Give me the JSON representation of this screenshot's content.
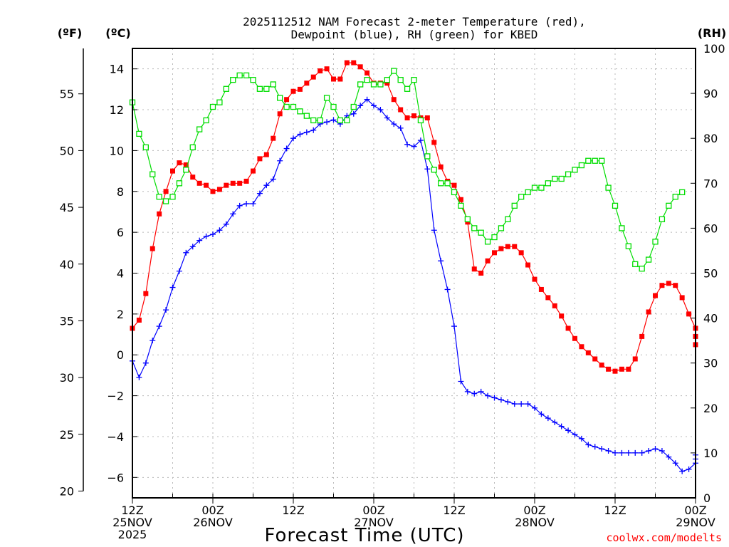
{
  "chart_data": {
    "type": "line",
    "title": [
      "2025112512 NAM Forecast 2-meter Temperature (red),",
      "Dewpoint (blue), RH (green) for KBED"
    ],
    "xlabel": "Forecast Time (UTC)",
    "credit": "coolwx.com/modelts",
    "axis_labels": {
      "fahrenheit": "(ºF)",
      "celsius": "(ºC)",
      "rh": "(RH)"
    },
    "x_hours_range": [
      0,
      84
    ],
    "celsius_range": [
      -7,
      15
    ],
    "rh_range": [
      0,
      100
    ],
    "fahrenheit_ticks": [
      20,
      25,
      30,
      35,
      40,
      45,
      50,
      55
    ],
    "celsius_ticks": [
      -6,
      -4,
      -2,
      0,
      2,
      4,
      6,
      8,
      10,
      12,
      14
    ],
    "celsius_tick_labels": [
      "−6",
      "−4",
      "−2",
      "0",
      "2",
      "4",
      "6",
      "8",
      "10",
      "12",
      "14"
    ],
    "rh_ticks": [
      0,
      10,
      20,
      30,
      40,
      50,
      60,
      70,
      80,
      90,
      100
    ],
    "x_ticks": [
      {
        "hour": 0,
        "lines": [
          "12Z",
          "25NOV",
          "2025"
        ]
      },
      {
        "hour": 12,
        "lines": [
          "00Z",
          "26NOV"
        ]
      },
      {
        "hour": 24,
        "lines": [
          "12Z"
        ]
      },
      {
        "hour": 36,
        "lines": [
          "00Z",
          "27NOV"
        ]
      },
      {
        "hour": 48,
        "lines": [
          "12Z"
        ]
      },
      {
        "hour": 60,
        "lines": [
          "00Z",
          "28NOV"
        ]
      },
      {
        "hour": 72,
        "lines": [
          "12Z"
        ]
      },
      {
        "hour": 84,
        "lines": [
          "00Z",
          "29NOV"
        ]
      }
    ],
    "series": [
      {
        "name": "Temperature",
        "color": "#ff0000",
        "marker": "filled-square",
        "units": "C",
        "points": [
          [
            0,
            1.3
          ],
          [
            1,
            1.7
          ],
          [
            2,
            3
          ],
          [
            3,
            5.2
          ],
          [
            4,
            6.9
          ],
          [
            5,
            8
          ],
          [
            6,
            9
          ],
          [
            7,
            9.4
          ],
          [
            8,
            9.3
          ],
          [
            9,
            8.7
          ],
          [
            10,
            8.4
          ],
          [
            11,
            8.3
          ],
          [
            12,
            8
          ],
          [
            13,
            8.1
          ],
          [
            14,
            8.3
          ],
          [
            15,
            8.4
          ],
          [
            16,
            8.4
          ],
          [
            17,
            8.5
          ],
          [
            18,
            9
          ],
          [
            19,
            9.6
          ],
          [
            20,
            9.8
          ],
          [
            21,
            10.6
          ],
          [
            22,
            11.8
          ],
          [
            23,
            12.5
          ],
          [
            24,
            12.9
          ],
          [
            25,
            13
          ],
          [
            26,
            13.3
          ],
          [
            27,
            13.6
          ],
          [
            28,
            13.9
          ],
          [
            29,
            14
          ],
          [
            30,
            13.5
          ],
          [
            31,
            13.5
          ],
          [
            32,
            14.3
          ],
          [
            33,
            14.3
          ],
          [
            34,
            14.1
          ],
          [
            35,
            13.8
          ],
          [
            36,
            13.3
          ],
          [
            37,
            13.3
          ],
          [
            38,
            13.3
          ],
          [
            39,
            12.5
          ],
          [
            40,
            12
          ],
          [
            41,
            11.6
          ],
          [
            42,
            11.7
          ],
          [
            43,
            11.6
          ],
          [
            44,
            11.6
          ],
          [
            45,
            10.4
          ],
          [
            46,
            9.2
          ],
          [
            47,
            8.5
          ],
          [
            48,
            8.3
          ],
          [
            49,
            7.6
          ],
          [
            50,
            6.5
          ],
          [
            51,
            4.2
          ],
          [
            52,
            4
          ],
          [
            53,
            4.6
          ],
          [
            54,
            5
          ],
          [
            55,
            5.2
          ],
          [
            56,
            5.3
          ],
          [
            57,
            5.3
          ],
          [
            58,
            5
          ],
          [
            59,
            4.4
          ],
          [
            60,
            3.7
          ],
          [
            61,
            3.2
          ],
          [
            62,
            2.8
          ],
          [
            63,
            2.4
          ],
          [
            64,
            1.9
          ],
          [
            65,
            1.3
          ],
          [
            66,
            0.8
          ],
          [
            67,
            0.4
          ],
          [
            68,
            0.1
          ],
          [
            69,
            -0.2
          ],
          [
            70,
            -0.5
          ],
          [
            71,
            -0.7
          ],
          [
            72,
            -0.8
          ],
          [
            73,
            -0.7
          ],
          [
            74,
            -0.7
          ],
          [
            75,
            -0.2
          ],
          [
            76,
            0.9
          ],
          [
            77,
            2.1
          ],
          [
            78,
            2.9
          ],
          [
            79,
            3.4
          ],
          [
            80,
            3.5
          ],
          [
            81,
            3.4
          ],
          [
            82,
            2.8
          ],
          [
            83,
            2
          ],
          [
            84,
            1.3
          ],
          [
            85,
            0.9
          ],
          [
            86,
            0.5
          ]
        ]
      },
      {
        "name": "Dewpoint",
        "color": "#0000ff",
        "marker": "plus",
        "units": "C",
        "points": [
          [
            0,
            -0.3
          ],
          [
            1,
            -1.1
          ],
          [
            2,
            -0.4
          ],
          [
            3,
            0.7
          ],
          [
            4,
            1.4
          ],
          [
            5,
            2.2
          ],
          [
            6,
            3.3
          ],
          [
            7,
            4.1
          ],
          [
            8,
            5
          ],
          [
            9,
            5.3
          ],
          [
            10,
            5.6
          ],
          [
            11,
            5.8
          ],
          [
            12,
            5.9
          ],
          [
            13,
            6.1
          ],
          [
            14,
            6.4
          ],
          [
            15,
            6.9
          ],
          [
            16,
            7.3
          ],
          [
            17,
            7.4
          ],
          [
            18,
            7.4
          ],
          [
            19,
            7.9
          ],
          [
            20,
            8.3
          ],
          [
            21,
            8.6
          ],
          [
            22,
            9.5
          ],
          [
            23,
            10.1
          ],
          [
            24,
            10.6
          ],
          [
            25,
            10.8
          ],
          [
            26,
            10.9
          ],
          [
            27,
            11
          ],
          [
            28,
            11.3
          ],
          [
            29,
            11.4
          ],
          [
            30,
            11.5
          ],
          [
            31,
            11.3
          ],
          [
            32,
            11.7
          ],
          [
            33,
            11.8
          ],
          [
            34,
            12.2
          ],
          [
            35,
            12.5
          ],
          [
            36,
            12.2
          ],
          [
            37,
            12
          ],
          [
            38,
            11.6
          ],
          [
            39,
            11.3
          ],
          [
            40,
            11.1
          ],
          [
            41,
            10.3
          ],
          [
            42,
            10.2
          ],
          [
            43,
            10.5
          ],
          [
            44,
            9.1
          ],
          [
            45,
            6.1
          ],
          [
            46,
            4.6
          ],
          [
            47,
            3.2
          ],
          [
            48,
            1.4
          ],
          [
            49,
            -1.3
          ],
          [
            50,
            -1.8
          ],
          [
            51,
            -1.9
          ],
          [
            52,
            -1.8
          ],
          [
            53,
            -2
          ],
          [
            54,
            -2.1
          ],
          [
            55,
            -2.2
          ],
          [
            56,
            -2.3
          ],
          [
            57,
            -2.4
          ],
          [
            58,
            -2.4
          ],
          [
            59,
            -2.4
          ],
          [
            60,
            -2.6
          ],
          [
            61,
            -2.9
          ],
          [
            62,
            -3.1
          ],
          [
            63,
            -3.3
          ],
          [
            64,
            -3.5
          ],
          [
            65,
            -3.7
          ],
          [
            66,
            -3.9
          ],
          [
            67,
            -4.1
          ],
          [
            68,
            -4.4
          ],
          [
            69,
            -4.5
          ],
          [
            70,
            -4.6
          ],
          [
            71,
            -4.7
          ],
          [
            72,
            -4.8
          ],
          [
            73,
            -4.8
          ],
          [
            74,
            -4.8
          ],
          [
            75,
            -4.8
          ],
          [
            76,
            -4.8
          ],
          [
            77,
            -4.7
          ],
          [
            78,
            -4.6
          ],
          [
            79,
            -4.7
          ],
          [
            80,
            -5
          ],
          [
            81,
            -5.3
          ],
          [
            82,
            -5.7
          ],
          [
            83,
            -5.6
          ],
          [
            84,
            -5.3
          ],
          [
            85,
            -5.1
          ],
          [
            86,
            -4.9
          ]
        ]
      },
      {
        "name": "RH",
        "color": "#00dd00",
        "marker": "open-square",
        "units": "%",
        "points": [
          [
            0,
            88
          ],
          [
            1,
            81
          ],
          [
            2,
            78
          ],
          [
            3,
            72
          ],
          [
            4,
            67
          ],
          [
            5,
            66
          ],
          [
            6,
            67
          ],
          [
            7,
            70
          ],
          [
            8,
            73
          ],
          [
            9,
            78
          ],
          [
            10,
            82
          ],
          [
            11,
            84
          ],
          [
            12,
            87
          ],
          [
            13,
            88
          ],
          [
            14,
            91
          ],
          [
            15,
            93
          ],
          [
            16,
            94
          ],
          [
            17,
            94
          ],
          [
            18,
            93
          ],
          [
            19,
            91
          ],
          [
            20,
            91
          ],
          [
            21,
            92
          ],
          [
            22,
            89
          ],
          [
            23,
            87
          ],
          [
            24,
            87
          ],
          [
            25,
            86
          ],
          [
            26,
            85
          ],
          [
            27,
            84
          ],
          [
            28,
            84
          ],
          [
            29,
            89
          ],
          [
            30,
            87
          ],
          [
            31,
            84
          ],
          [
            32,
            84
          ],
          [
            33,
            87
          ],
          [
            34,
            92
          ],
          [
            35,
            93
          ],
          [
            36,
            92
          ],
          [
            37,
            92
          ],
          [
            38,
            93
          ],
          [
            39,
            95
          ],
          [
            40,
            93
          ],
          [
            41,
            91
          ],
          [
            42,
            93
          ],
          [
            43,
            84
          ],
          [
            44,
            76
          ],
          [
            45,
            73
          ],
          [
            46,
            70
          ],
          [
            47,
            70
          ],
          [
            48,
            68
          ],
          [
            49,
            65
          ],
          [
            50,
            62
          ],
          [
            51,
            60
          ],
          [
            52,
            59
          ],
          [
            53,
            57
          ],
          [
            54,
            58
          ],
          [
            55,
            60
          ],
          [
            56,
            62
          ],
          [
            57,
            65
          ],
          [
            58,
            67
          ],
          [
            59,
            68
          ],
          [
            60,
            69
          ],
          [
            61,
            69
          ],
          [
            62,
            70
          ],
          [
            63,
            71
          ],
          [
            64,
            71
          ],
          [
            65,
            72
          ],
          [
            66,
            73
          ],
          [
            67,
            74
          ],
          [
            68,
            75
          ],
          [
            69,
            75
          ],
          [
            70,
            75
          ],
          [
            71,
            69
          ],
          [
            72,
            65
          ],
          [
            73,
            60
          ],
          [
            74,
            56
          ],
          [
            75,
            52
          ],
          [
            76,
            51
          ],
          [
            77,
            53
          ],
          [
            78,
            57
          ],
          [
            79,
            62
          ],
          [
            80,
            65
          ],
          [
            81,
            67
          ],
          [
            82,
            68
          ]
        ]
      }
    ]
  }
}
